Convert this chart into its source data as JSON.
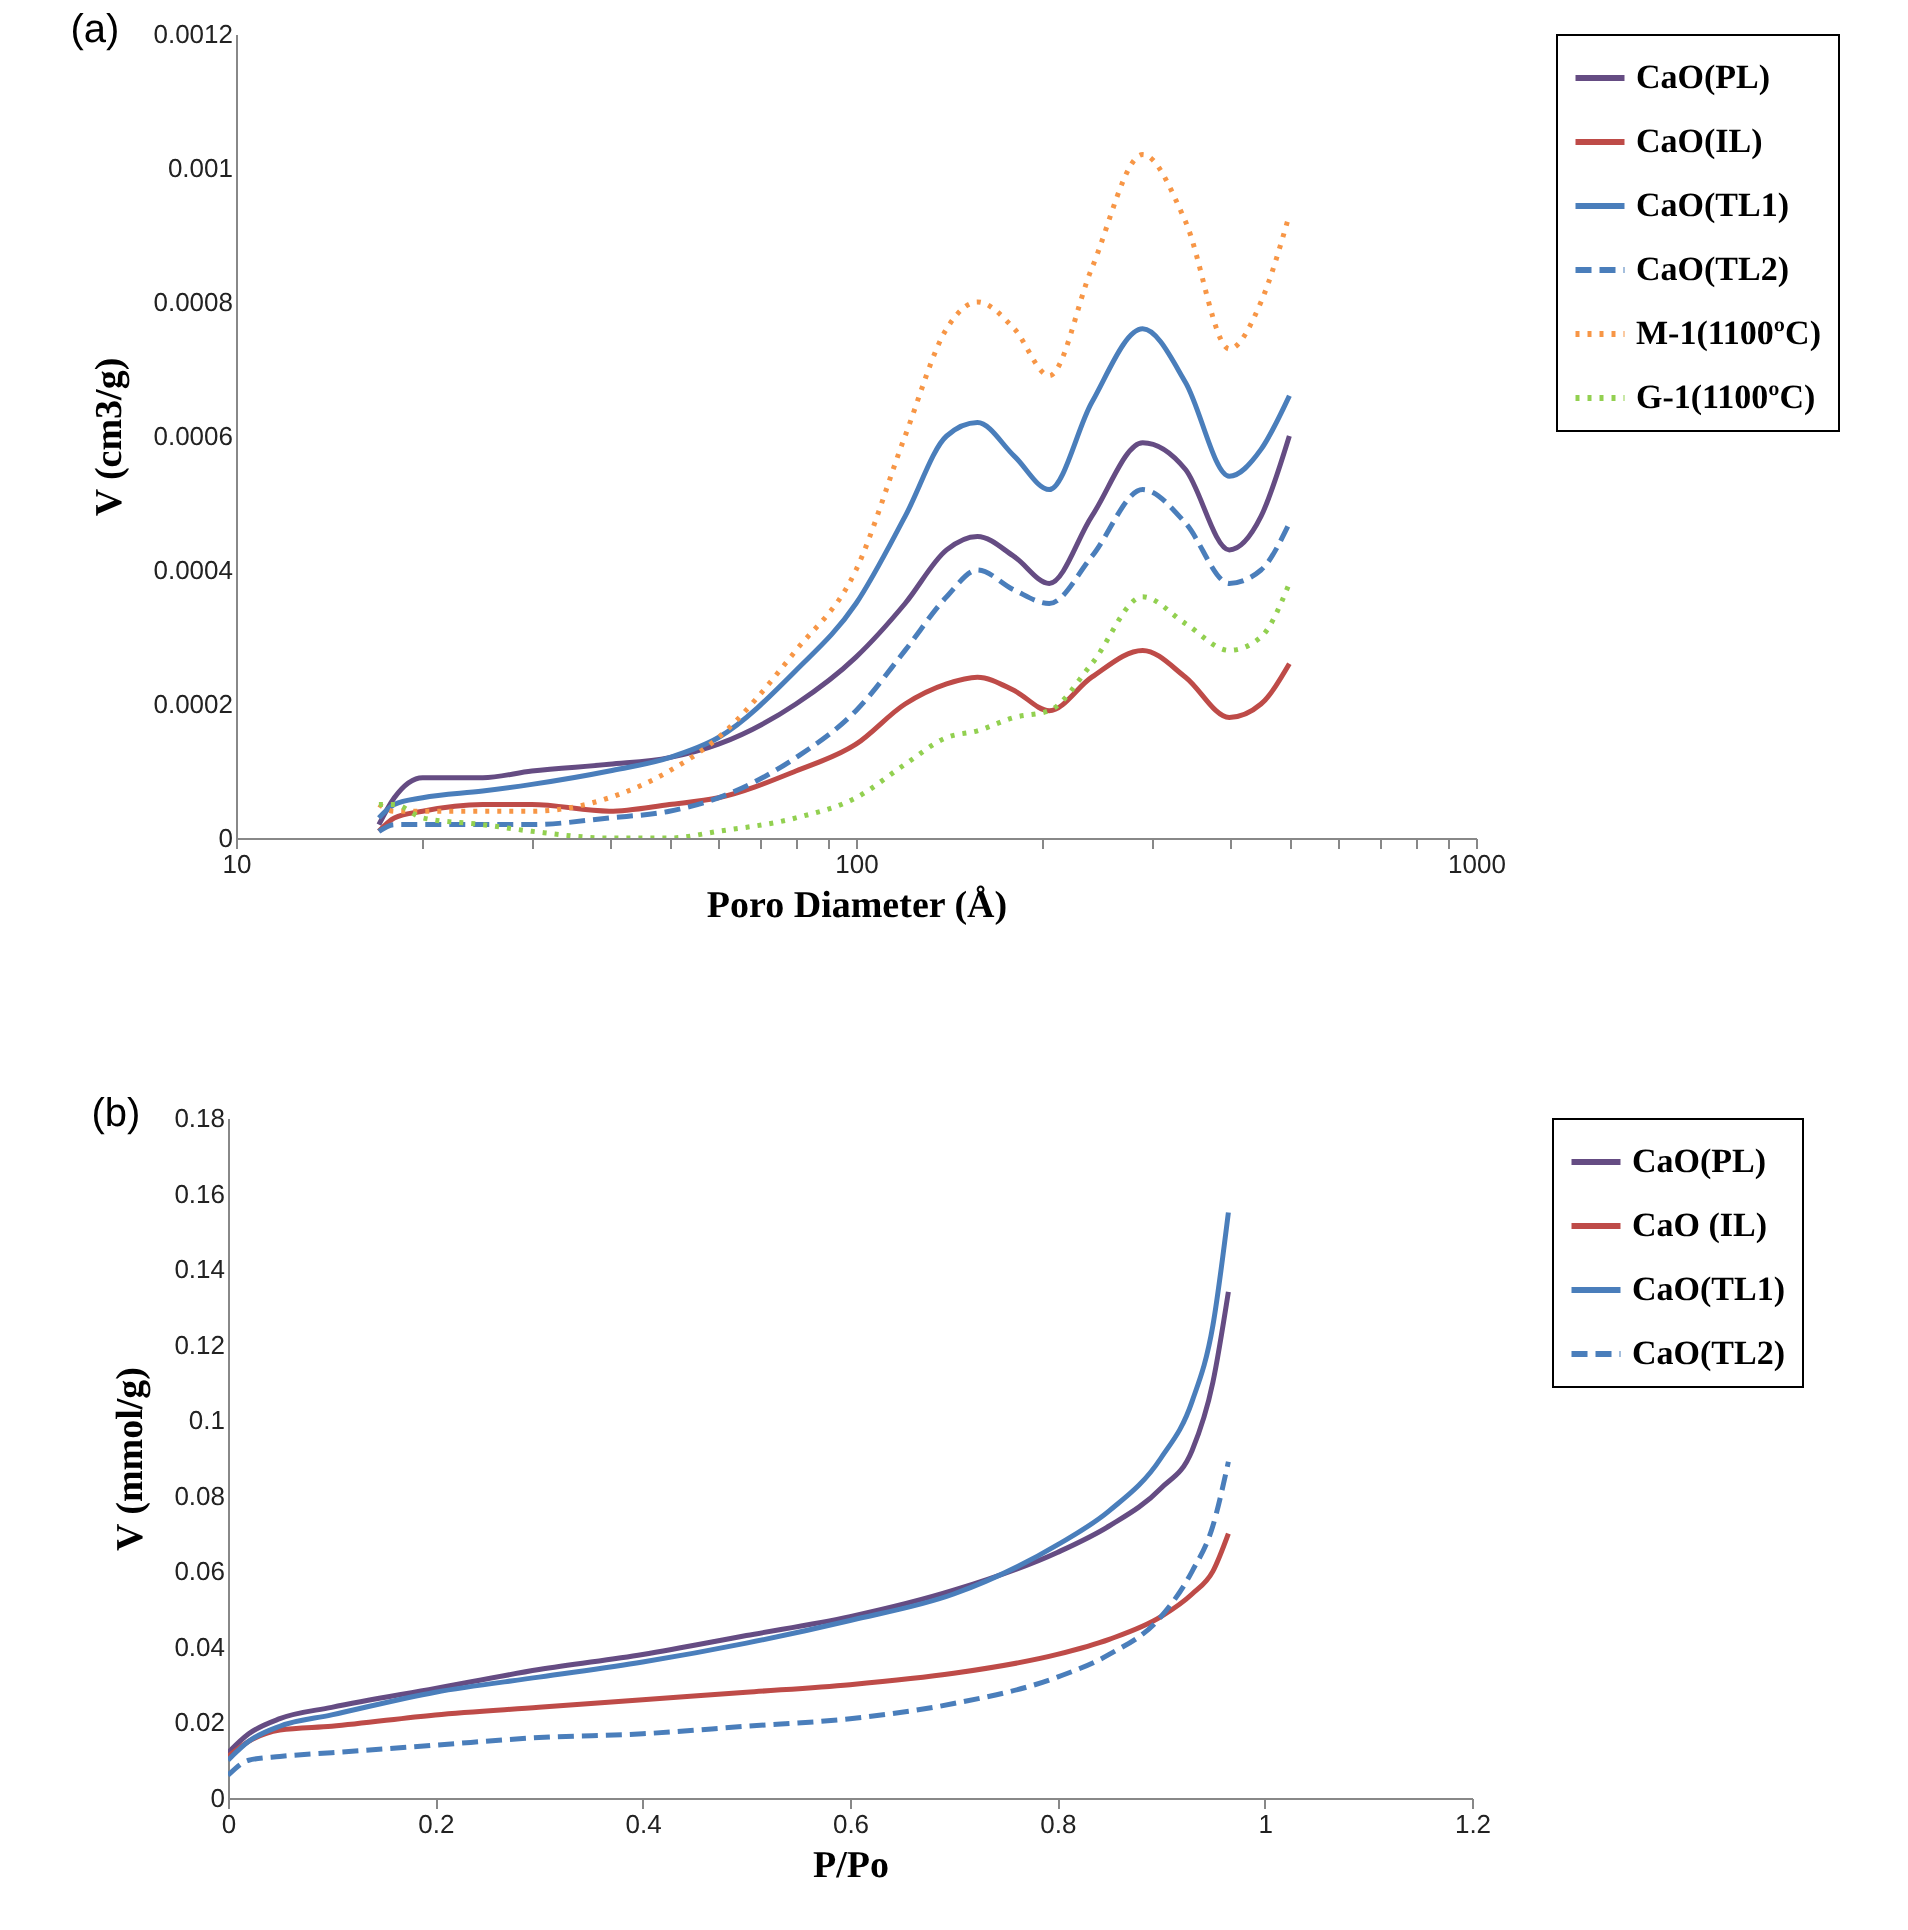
{
  "chart_data": [
    {
      "type": "line",
      "title": "(a)",
      "xlabel": "Poro Diameter (Å)",
      "ylabel": "V (cm3/g)",
      "log": "x",
      "grid": false,
      "legend": "right",
      "marker": "none",
      "xlim": [
        10,
        1000
      ],
      "xticks": [
        10,
        {
          "value": 20,
          "label": null
        },
        {
          "value": 30,
          "label": null
        },
        {
          "value": 40,
          "label": null
        },
        {
          "value": 50,
          "label": null
        },
        {
          "value": 60,
          "label": null
        },
        {
          "value": 70,
          "label": null
        },
        {
          "value": 80,
          "label": null
        },
        {
          "value": 90,
          "label": null
        },
        100,
        {
          "value": 200,
          "label": null
        },
        {
          "value": 300,
          "label": null
        },
        {
          "value": 400,
          "label": null
        },
        {
          "value": 500,
          "label": null
        },
        {
          "value": 600,
          "label": null
        },
        {
          "value": 700,
          "label": null
        },
        {
          "value": 800,
          "label": null
        },
        {
          "value": 900,
          "label": null
        },
        1000
      ],
      "ylim": [
        0,
        0.0012
      ],
      "yticks": [
        0,
        0.0002,
        0.0004,
        0.0006,
        0.0008,
        0.001,
        0.0012
      ],
      "x": [
        17,
        18,
        20,
        25,
        30,
        40,
        50,
        60,
        80,
        100,
        120,
        140,
        157,
        180,
        205,
        240,
        290,
        340,
        400,
        450,
        500
      ],
      "series": [
        {
          "name": "CaO(PL)",
          "color": "#654c83",
          "line_style": "solid",
          "values": [
            2e-05,
            6e-05,
            9e-05,
            9e-05,
            0.0001,
            0.00011,
            0.00012,
            0.00014,
            0.0002,
            0.00027,
            0.00035,
            0.00043,
            0.00045,
            0.00042,
            0.00038,
            0.00048,
            0.00059,
            0.00055,
            0.00043,
            0.00048,
            0.0006
          ]
        },
        {
          "name": "CaO(IL)",
          "color": "#be4b48",
          "line_style": "solid",
          "values": [
            1e-05,
            3e-05,
            4e-05,
            5e-05,
            5e-05,
            4e-05,
            5e-05,
            6e-05,
            0.0001,
            0.00014,
            0.0002,
            0.00023,
            0.00024,
            0.00022,
            0.00019,
            0.00024,
            0.00028,
            0.00024,
            0.00018,
            0.0002,
            0.00026
          ]
        },
        {
          "name": "CaO(TL1)",
          "color": "#4a7ebb",
          "line_style": "solid",
          "values": [
            3e-05,
            5e-05,
            6e-05,
            7e-05,
            8e-05,
            0.0001,
            0.00012,
            0.00015,
            0.00025,
            0.00035,
            0.00048,
            0.0006,
            0.00062,
            0.00057,
            0.00052,
            0.00065,
            0.00076,
            0.00068,
            0.00054,
            0.00058,
            0.00066
          ]
        },
        {
          "name": "CaO(TL2)",
          "color": "#4a7ebb",
          "line_style": "dashed",
          "values": [
            1e-05,
            2e-05,
            2e-05,
            2e-05,
            2e-05,
            3e-05,
            4e-05,
            6e-05,
            0.00012,
            0.00019,
            0.00028,
            0.00036,
            0.0004,
            0.00037,
            0.00035,
            0.00042,
            0.00052,
            0.00047,
            0.00038,
            0.0004,
            0.00047
          ]
        },
        {
          "name": "M-1(1100ºC)",
          "color": "#f79646",
          "line_style": "dotted",
          "values": [
            5e-05,
            4e-05,
            4e-05,
            4e-05,
            4e-05,
            6e-05,
            0.0001,
            0.00015,
            0.00028,
            0.0004,
            0.0006,
            0.00076,
            0.0008,
            0.00076,
            0.00069,
            0.00085,
            0.00102,
            0.00092,
            0.00073,
            0.0008,
            0.00093
          ]
        },
        {
          "name": "G-1(1100ºC)",
          "color": "#92d050",
          "line_style": "dotted",
          "values": [
            5e-05,
            5e-05,
            3e-05,
            2e-05,
            1e-05,
            0,
            0,
            1e-05,
            3e-05,
            6e-05,
            0.00011,
            0.00015,
            0.00016,
            0.00018,
            0.00019,
            0.00026,
            0.00036,
            0.00032,
            0.00028,
            0.0003,
            0.00038
          ]
        }
      ]
    },
    {
      "type": "line",
      "title": "(b)",
      "xlabel": "P/Po",
      "ylabel": "V (mmol/g)",
      "grid": false,
      "legend": "right",
      "marker": "none",
      "xlim": [
        0,
        1.2
      ],
      "xticks": [
        0,
        0.2,
        0.4,
        0.6,
        0.8,
        1,
        1.2
      ],
      "ylim": [
        0,
        0.18
      ],
      "yticks": [
        0,
        0.02,
        0.04,
        0.06,
        0.08,
        0.1,
        0.12,
        0.14,
        0.16,
        0.18
      ],
      "x": [
        0,
        0.02,
        0.05,
        0.1,
        0.2,
        0.3,
        0.4,
        0.5,
        0.6,
        0.7,
        0.8,
        0.85,
        0.9,
        0.93,
        0.95,
        0.965
      ],
      "series": [
        {
          "name": "CaO(PL)",
          "color": "#654c83",
          "line_style": "solid",
          "values": [
            0.012,
            0.017,
            0.021,
            0.024,
            0.029,
            0.034,
            0.038,
            0.043,
            0.048,
            0.055,
            0.065,
            0.072,
            0.082,
            0.092,
            0.11,
            0.134
          ]
        },
        {
          "name": "CaO (IL)",
          "color": "#be4b48",
          "line_style": "solid",
          "values": [
            0.011,
            0.015,
            0.018,
            0.019,
            0.022,
            0.024,
            0.026,
            0.028,
            0.03,
            0.033,
            0.038,
            0.042,
            0.048,
            0.054,
            0.06,
            0.07
          ]
        },
        {
          "name": "CaO(TL1)",
          "color": "#4a7ebb",
          "line_style": "solid",
          "values": [
            0.01,
            0.015,
            0.019,
            0.022,
            0.028,
            0.032,
            0.036,
            0.041,
            0.047,
            0.054,
            0.067,
            0.076,
            0.09,
            0.105,
            0.125,
            0.155
          ]
        },
        {
          "name": "CaO(TL2)",
          "color": "#4a7ebb",
          "line_style": "dashed",
          "values": [
            0.006,
            0.01,
            0.011,
            0.012,
            0.014,
            0.016,
            0.017,
            0.019,
            0.021,
            0.025,
            0.032,
            0.038,
            0.048,
            0.06,
            0.072,
            0.089
          ]
        }
      ]
    }
  ]
}
